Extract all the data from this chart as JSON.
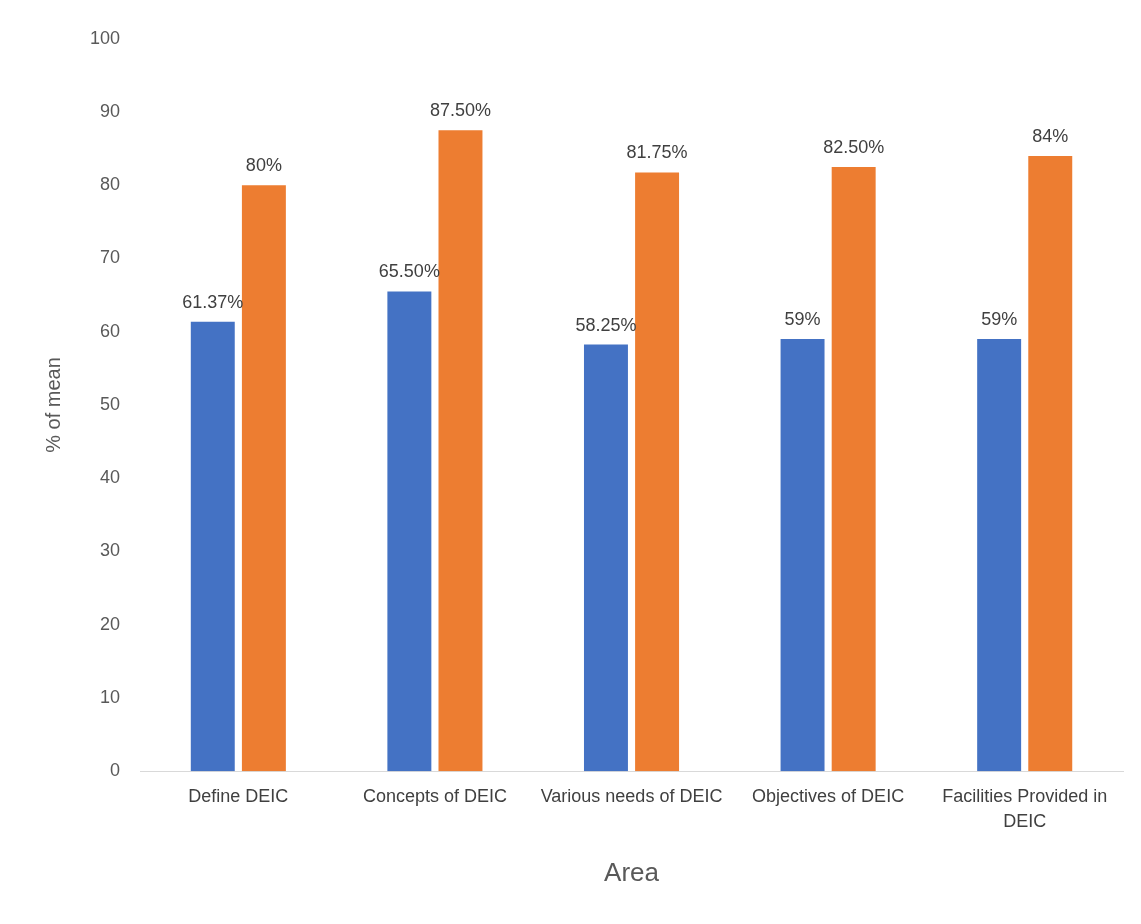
{
  "chart_data": {
    "type": "bar",
    "xlabel": "Area",
    "ylabel": "% of mean",
    "categories": [
      "Define DEIC",
      "Concepts of DEIC",
      "Various needs of DEIC",
      "Objectives of DEIC",
      "Facilities Provided in DEIC"
    ],
    "series": [
      {
        "color": "#4472c4",
        "values": [
          61.37,
          65.5,
          58.25,
          59,
          59
        ],
        "value_labels": [
          "61.37%",
          "65.50%",
          "58.25%",
          "59%",
          "59%"
        ]
      },
      {
        "color": "#ed7d31",
        "values": [
          80,
          87.5,
          81.75,
          82.5,
          84
        ],
        "value_labels": [
          "80%",
          "87.50%",
          "81.75%",
          "82.50%",
          "84%"
        ]
      }
    ],
    "ylim": [
      0,
      100
    ],
    "yticks": [
      0,
      10,
      20,
      30,
      40,
      50,
      60,
      70,
      80,
      90,
      100
    ],
    "grid": false,
    "legend": false
  }
}
